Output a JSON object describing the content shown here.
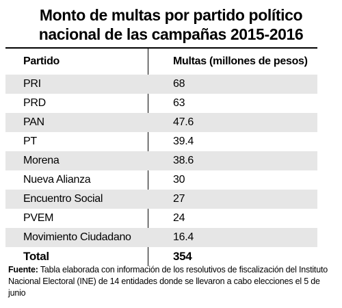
{
  "title": {
    "line1": "Monto de multas por partido político",
    "line2": "nacional de las campañas 2015-2016"
  },
  "table": {
    "headers": [
      "Partido",
      "Multas (millones de pesos)"
    ],
    "rows": [
      {
        "party": "PRI",
        "amount": "68"
      },
      {
        "party": "PRD",
        "amount": "63"
      },
      {
        "party": "PAN",
        "amount": "47.6"
      },
      {
        "party": "PT",
        "amount": "39.4"
      },
      {
        "party": "Morena",
        "amount": "38.6"
      },
      {
        "party": "Nueva Alianza",
        "amount": "30"
      },
      {
        "party": "Encuentro Social",
        "amount": "27"
      },
      {
        "party": "PVEM",
        "amount": "24"
      },
      {
        "party": "Movimiento Ciudadano",
        "amount": "16.4"
      }
    ],
    "total": {
      "label": "Total",
      "amount": "354"
    }
  },
  "footnote": {
    "label": "Fuente:",
    "text": "Tabla elaborada con información de los resolutivos de fiscalización del Instituto Nacional Electoral (INE) de 14 entidades donde se llevaron a cabo elecciones el 5 de junio"
  },
  "chart_data": {
    "type": "table",
    "columns": [
      "Partido",
      "Multas (millones de pesos)"
    ],
    "categories": [
      "PRI",
      "PRD",
      "PAN",
      "PT",
      "Morena",
      "Nueva Alianza",
      "Encuentro Social",
      "PVEM",
      "Movimiento Ciudadano"
    ],
    "values": [
      68,
      63,
      47.6,
      39.4,
      38.6,
      30,
      27,
      24,
      16.4
    ],
    "total": 354
  },
  "colors": {
    "row_shade": "#e6e6e6",
    "text": "#000000",
    "background": "#ffffff"
  }
}
